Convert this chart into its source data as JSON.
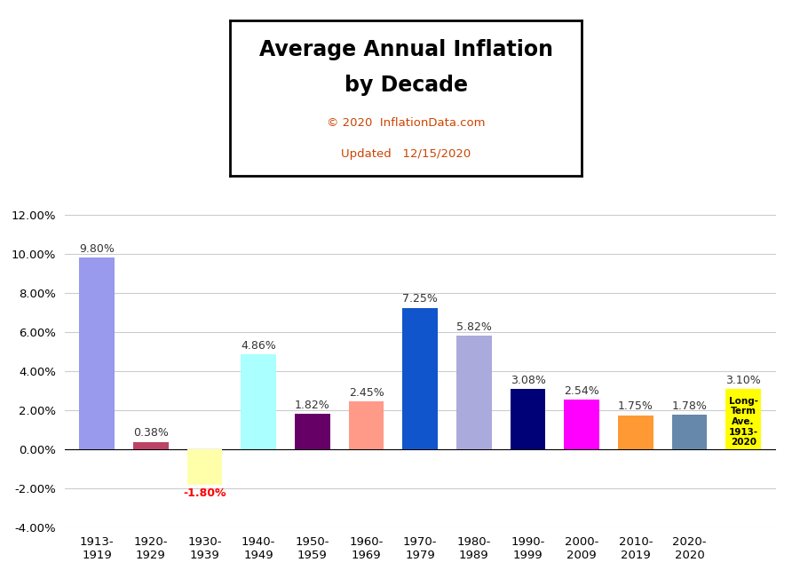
{
  "categories": [
    "1913-\n1919",
    "1920-\n1929",
    "1930-\n1939",
    "1940-\n1949",
    "1950-\n1959",
    "1960-\n1969",
    "1970-\n1979",
    "1980-\n1989",
    "1990-\n1999",
    "2000-\n2009",
    "2010-\n2019",
    "2020-\n2020"
  ],
  "values": [
    9.8,
    0.38,
    -1.8,
    4.86,
    1.82,
    2.45,
    7.25,
    5.82,
    3.08,
    2.54,
    1.75,
    1.78
  ],
  "long_term_avg": 3.1,
  "long_term_label": "Long-\nTerm\nAve.\n1913-\n2020",
  "bar_colors": [
    "#9999ee",
    "#bb4466",
    "#ffffaa",
    "#aaffff",
    "#660066",
    "#ff9988",
    "#1155cc",
    "#aaaadd",
    "#000077",
    "#ff00ff",
    "#ff9933",
    "#6688aa"
  ],
  "long_term_color": "#ffff00",
  "title_line1": "Average Annual Inflation",
  "title_line2": "by Decade",
  "subtitle1": "© 2020  InflationData.com",
  "subtitle2": "Updated   12/15/2020",
  "ylim": [
    -4.0,
    12.5
  ],
  "yticks": [
    -4.0,
    -2.0,
    0.0,
    2.0,
    4.0,
    6.0,
    8.0,
    10.0,
    12.0
  ],
  "background_color": "#ffffff",
  "grid_color": "#cccccc",
  "title_fontsize": 17,
  "subtitle_fontsize": 9.5,
  "label_fontsize": 9,
  "tick_fontsize": 9.5
}
